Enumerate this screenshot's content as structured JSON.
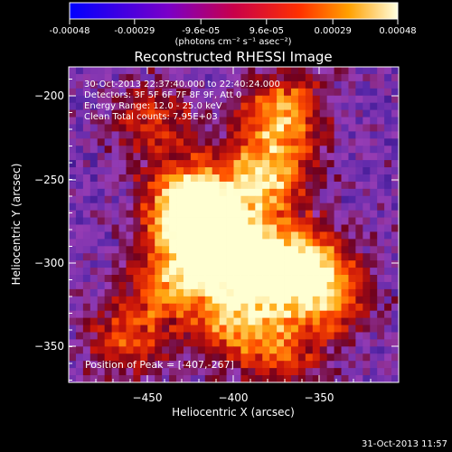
{
  "chart_data": {
    "type": "heatmap",
    "title": "Reconstructed RHESSI Image",
    "xlabel": "Heliocentric X (arcsec)",
    "ylabel": "Heliocentric Y (arcsec)",
    "xlim": [
      -489,
      -412
    ],
    "ylim": [
      -372,
      -177
    ],
    "x_ticks": [
      -450,
      -400,
      -350
    ],
    "y_ticks": [
      -200,
      -250,
      -300,
      -350
    ],
    "colorbar": {
      "range": [
        -0.00048,
        0.00048
      ],
      "tick_values": [
        -0.00048,
        -0.00029,
        -9.6e-05,
        9.6e-05,
        0.00029,
        0.00048
      ],
      "tick_labels": [
        "-0.00048",
        "-0.00029",
        "-9.6e-05",
        "9.6e-05",
        "0.00029",
        "0.00048"
      ],
      "unit_label": "(photons cm⁻² s⁻¹ asec⁻²)"
    },
    "annotations": [
      "30-Oct-2013 22:37:40.000 to 22:40:24.000",
      "Detectors: 3F 5F 6F 7F 8F 9F, Att 0",
      "Energy Range: 12.0 - 25.0 keV",
      "Clean    Total counts: 7.95E+03"
    ],
    "peak_label": "Position of Peak = [-407,-267]",
    "sources": [
      {
        "x": -418,
        "y": -262,
        "strength": 1.0
      },
      {
        "x": -405,
        "y": -285,
        "strength": 0.8
      },
      {
        "x": -380,
        "y": -300,
        "strength": 0.7
      },
      {
        "x": -372,
        "y": -245,
        "strength": 0.75
      },
      {
        "x": -362,
        "y": -205,
        "strength": 0.65
      },
      {
        "x": -352,
        "y": -300,
        "strength": 0.7
      },
      {
        "x": -335,
        "y": -318,
        "strength": 0.55
      },
      {
        "x": -390,
        "y": -335,
        "strength": 0.6
      },
      {
        "x": -430,
        "y": -310,
        "strength": 0.55
      },
      {
        "x": -455,
        "y": -345,
        "strength": 0.45
      },
      {
        "x": -440,
        "y": -210,
        "strength": 0.4
      },
      {
        "x": -360,
        "y": -355,
        "strength": 0.4
      }
    ]
  },
  "footer": {
    "timestamp": "31-Oct-2013 11:57"
  }
}
